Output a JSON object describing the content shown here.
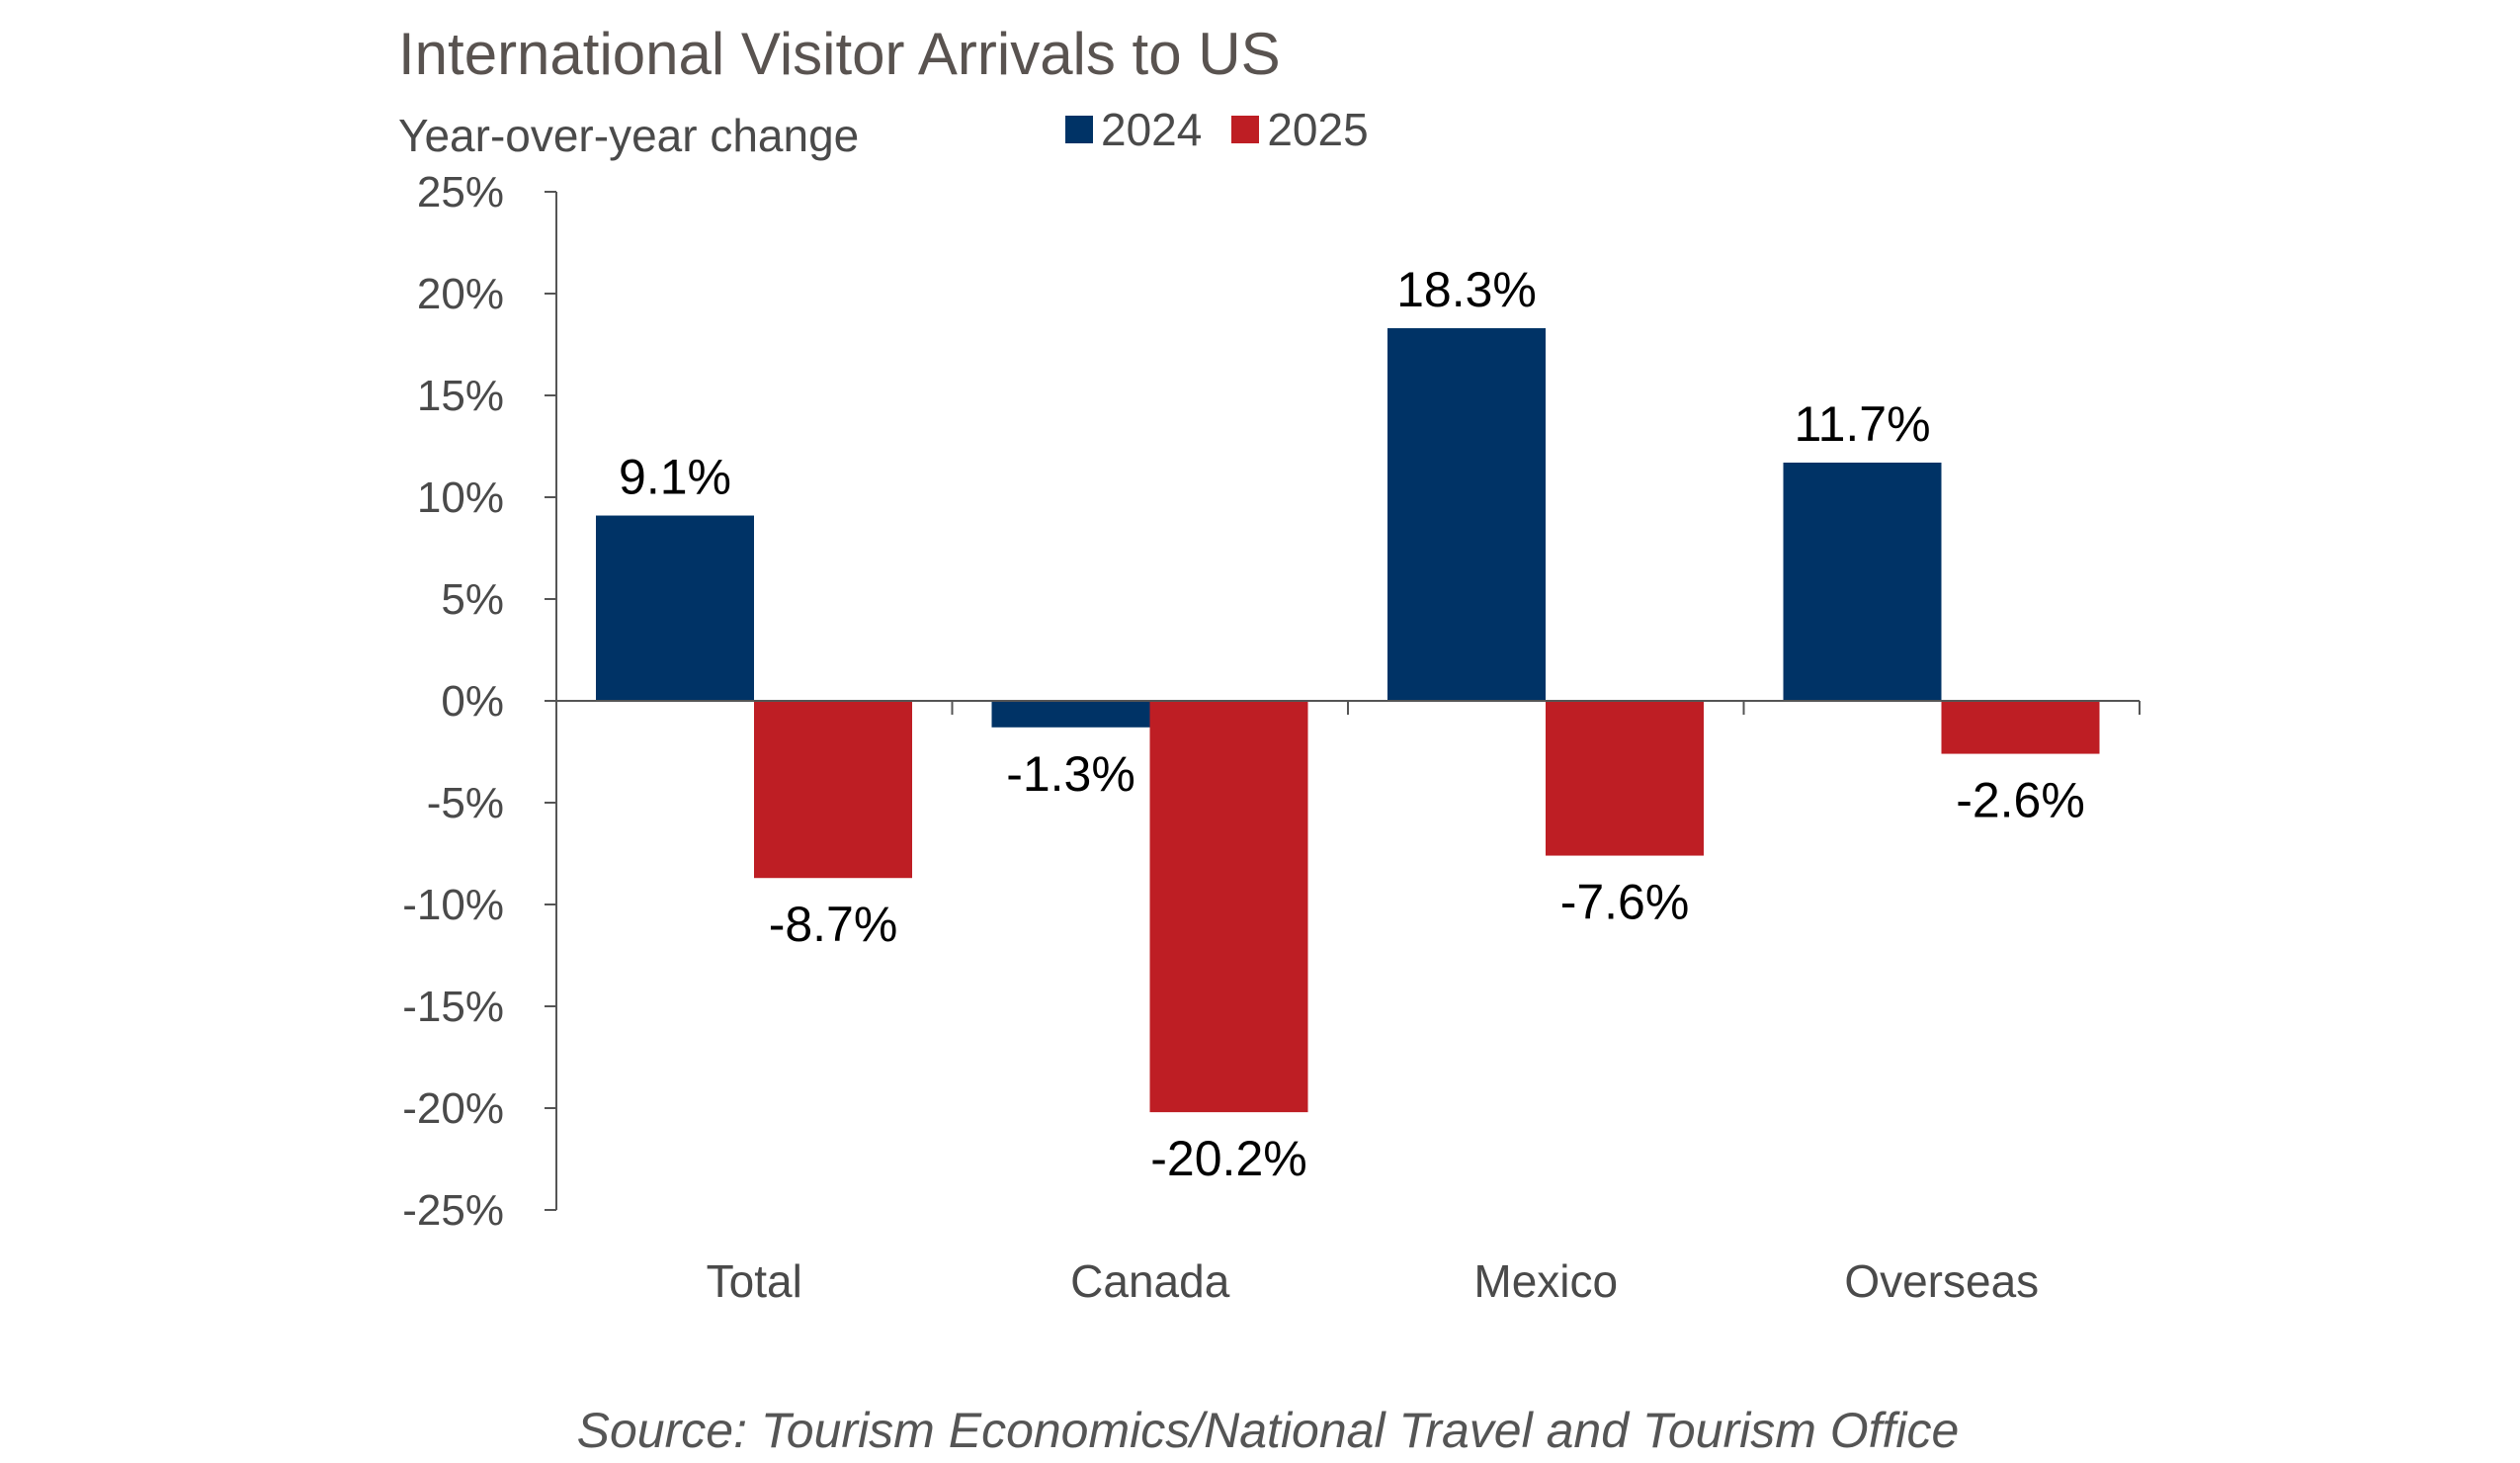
{
  "chart_data": {
    "type": "bar",
    "title": "International Visitor Arrivals to US",
    "ylabel": "Year-over-year change",
    "xlabel": "",
    "categories": [
      "Total",
      "Canada",
      "Mexico",
      "Overseas"
    ],
    "series": [
      {
        "name": "2024",
        "color": "#003366",
        "values": [
          9.1,
          -1.3,
          18.3,
          11.7
        ],
        "labels": [
          "9.1%",
          "-1.3%",
          "18.3%",
          "11.7%"
        ]
      },
      {
        "name": "2025",
        "color": "#be1e24",
        "values": [
          -8.7,
          -20.2,
          -7.6,
          -2.6
        ],
        "labels": [
          "-8.7%",
          "-20.2%",
          "-7.6%",
          "-2.6%"
        ]
      }
    ],
    "ylim": [
      -25,
      25
    ],
    "yticks": [
      25,
      20,
      15,
      10,
      5,
      0,
      -5,
      -10,
      -15,
      -20,
      -25
    ],
    "ytick_labels": [
      "25%",
      "20%",
      "15%",
      "10%",
      "5%",
      "0%",
      "-5%",
      "-10%",
      "-15%",
      "-20%",
      "-25%"
    ],
    "grid": false,
    "legend_position": "top"
  },
  "source": "Source: Tourism Economics/National Travel and Tourism Office"
}
